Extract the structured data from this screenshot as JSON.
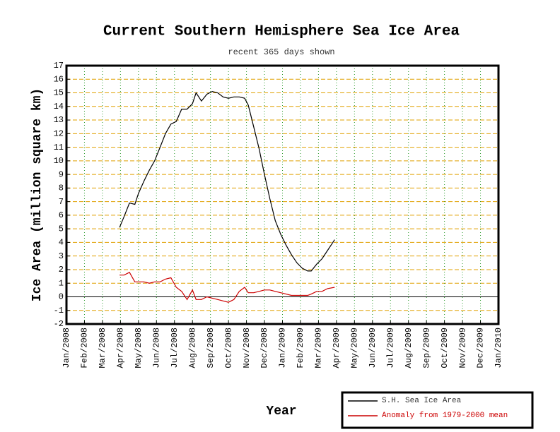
{
  "chart_data": {
    "type": "line",
    "title": "Current Southern Hemisphere Sea Ice Area",
    "subtitle": "recent 365 days shown",
    "x_label": "Year",
    "y_label": "Ice Area (million square km)",
    "x": [
      2.95,
      3.2,
      3.5,
      3.8,
      4.0,
      4.3,
      4.6,
      4.9,
      5.2,
      5.5,
      5.8,
      6.1,
      6.4,
      6.7,
      7.0,
      7.2,
      7.5,
      7.8,
      8.1,
      8.4,
      8.7,
      9.0,
      9.3,
      9.6,
      9.9,
      10.1,
      10.4,
      10.7,
      11.0,
      11.3,
      11.6,
      11.9,
      12.2,
      12.5,
      12.8,
      13.1,
      13.4,
      13.6,
      13.9,
      14.2,
      14.5,
      14.9
    ],
    "series": [
      {
        "name": "S.H. Sea Ice Area",
        "color": "#000000",
        "values": [
          5.1,
          5.9,
          6.9,
          6.8,
          7.6,
          8.5,
          9.3,
          10.0,
          11.0,
          12.0,
          12.7,
          12.9,
          13.8,
          13.8,
          14.2,
          15.0,
          14.4,
          14.9,
          15.1,
          15.0,
          14.7,
          14.6,
          14.7,
          14.7,
          14.6,
          14.1,
          12.5,
          10.9,
          9.0,
          7.2,
          5.6,
          4.6,
          3.8,
          3.1,
          2.5,
          2.1,
          1.9,
          1.9,
          2.4,
          2.8,
          3.4,
          4.2
        ]
      },
      {
        "name": "Anomaly from 1979-2000 mean",
        "color": "#cc0000",
        "values": [
          1.6,
          1.6,
          1.8,
          1.1,
          1.1,
          1.1,
          1.0,
          1.1,
          1.1,
          1.3,
          1.4,
          0.7,
          0.4,
          -0.2,
          0.5,
          -0.2,
          -0.2,
          0.0,
          -0.1,
          -0.2,
          -0.3,
          -0.4,
          -0.2,
          0.4,
          0.7,
          0.3,
          0.3,
          0.4,
          0.5,
          0.5,
          0.4,
          0.3,
          0.2,
          0.1,
          0.1,
          0.1,
          0.1,
          0.2,
          0.4,
          0.4,
          0.6,
          0.7
        ]
      }
    ],
    "xlim": [
      0,
      24
    ],
    "xticks": [
      {
        "value": 0,
        "label": "Jan/2008"
      },
      {
        "value": 1,
        "label": "Feb/2008"
      },
      {
        "value": 2,
        "label": "Mar/2008"
      },
      {
        "value": 3,
        "label": "Apr/2008"
      },
      {
        "value": 4,
        "label": "May/2008"
      },
      {
        "value": 5,
        "label": "Jun/2008"
      },
      {
        "value": 6,
        "label": "Jul/2008"
      },
      {
        "value": 7,
        "label": "Aug/2008"
      },
      {
        "value": 8,
        "label": "Sep/2008"
      },
      {
        "value": 9,
        "label": "Oct/2008"
      },
      {
        "value": 10,
        "label": "Nov/2008"
      },
      {
        "value": 11,
        "label": "Dec/2008"
      },
      {
        "value": 12,
        "label": "Jan/2009"
      },
      {
        "value": 13,
        "label": "Feb/2009"
      },
      {
        "value": 14,
        "label": "Mar/2009"
      },
      {
        "value": 15,
        "label": "Apr/2009"
      },
      {
        "value": 16,
        "label": "May/2009"
      },
      {
        "value": 17,
        "label": "Jun/2009"
      },
      {
        "value": 18,
        "label": "Jul/2009"
      },
      {
        "value": 19,
        "label": "Aug/2009"
      },
      {
        "value": 20,
        "label": "Sep/2009"
      },
      {
        "value": 21,
        "label": "Oct/2009"
      },
      {
        "value": 22,
        "label": "Nov/2009"
      },
      {
        "value": 23,
        "label": "Dec/2009"
      },
      {
        "value": 24,
        "label": "Jan/2010"
      }
    ],
    "ylim": [
      -2,
      17
    ],
    "yticks": [
      -2,
      -1,
      0,
      1,
      2,
      3,
      4,
      5,
      6,
      7,
      8,
      9,
      10,
      11,
      12,
      13,
      14,
      15,
      16,
      17
    ],
    "grid": true
  }
}
